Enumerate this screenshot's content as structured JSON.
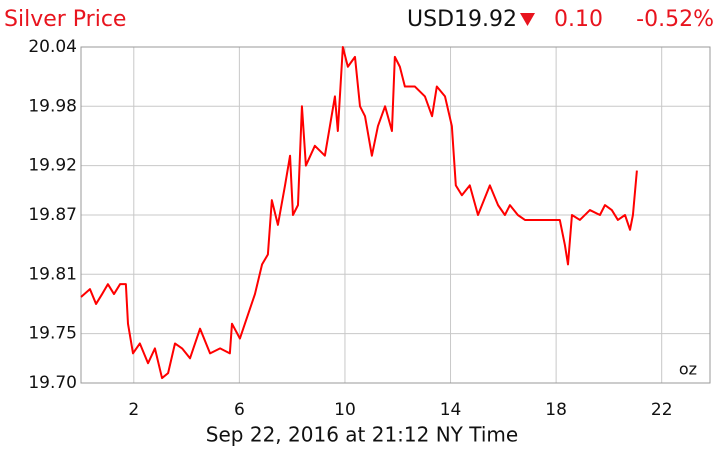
{
  "chart_data": {
    "type": "line",
    "title": "Silver Price",
    "price": "USD19.92",
    "change": "0.10",
    "change_percent": "-0.52%",
    "x_label": "Sep 22, 2016 at 21:12 NY Time",
    "unit": "oz",
    "x": [
      0.0,
      0.34,
      0.57,
      0.8,
      1.02,
      1.25,
      1.48,
      1.7,
      1.78,
      1.97,
      2.23,
      2.54,
      2.8,
      3.07,
      3.3,
      3.56,
      3.83,
      4.13,
      4.51,
      4.89,
      5.27,
      5.64,
      5.72,
      6.02,
      6.21,
      6.59,
      6.86,
      7.08,
      7.23,
      7.46,
      7.73,
      7.92,
      8.03,
      8.22,
      8.37,
      8.52,
      8.86,
      9.24,
      9.43,
      9.62,
      9.73,
      9.92,
      10.11,
      10.38,
      10.57,
      10.76,
      11.02,
      11.25,
      11.52,
      11.78,
      11.89,
      12.08,
      12.27,
      12.65,
      13.03,
      13.3,
      13.48,
      13.79,
      14.05,
      14.2,
      14.43,
      14.73,
      15.04,
      15.19,
      15.49,
      15.8,
      16.06,
      16.25,
      16.55,
      16.82,
      18.14,
      18.33,
      18.45,
      18.6,
      18.9,
      19.28,
      19.66,
      19.85,
      20.11,
      20.34,
      20.61,
      20.8,
      20.91,
      21.06
    ],
    "series": [
      {
        "name": "Silver",
        "color": "#ff0000",
        "values": [
          19.787,
          19.795,
          19.78,
          19.79,
          19.8,
          19.79,
          19.8,
          19.8,
          19.76,
          19.73,
          19.74,
          19.72,
          19.735,
          19.705,
          19.71,
          19.74,
          19.735,
          19.725,
          19.755,
          19.73,
          19.735,
          19.73,
          19.76,
          19.745,
          19.76,
          19.79,
          19.82,
          19.83,
          19.885,
          19.86,
          19.9,
          19.93,
          19.87,
          19.88,
          19.98,
          19.92,
          19.94,
          19.93,
          19.96,
          19.99,
          19.955,
          20.04,
          20.02,
          20.03,
          19.98,
          19.97,
          19.93,
          19.96,
          19.98,
          19.955,
          20.03,
          20.02,
          20.0,
          20.0,
          19.99,
          19.97,
          20.0,
          19.99,
          19.96,
          19.9,
          19.89,
          19.9,
          19.87,
          19.88,
          19.9,
          19.88,
          19.87,
          19.88,
          19.87,
          19.865,
          19.865,
          19.84,
          19.82,
          19.87,
          19.865,
          19.875,
          19.87,
          19.88,
          19.875,
          19.865,
          19.87,
          19.855,
          19.87,
          19.915
        ]
      }
    ],
    "xlim": [
      0,
      23.83
    ],
    "xticks": [
      2,
      6,
      10,
      14,
      18,
      22
    ],
    "ylim": [
      19.7,
      20.04
    ],
    "yticks": [
      {
        "value": 19.7,
        "label": "19.70"
      },
      19.75,
      19.81,
      19.87,
      19.92,
      19.98,
      20.04
    ],
    "grid": true
  }
}
